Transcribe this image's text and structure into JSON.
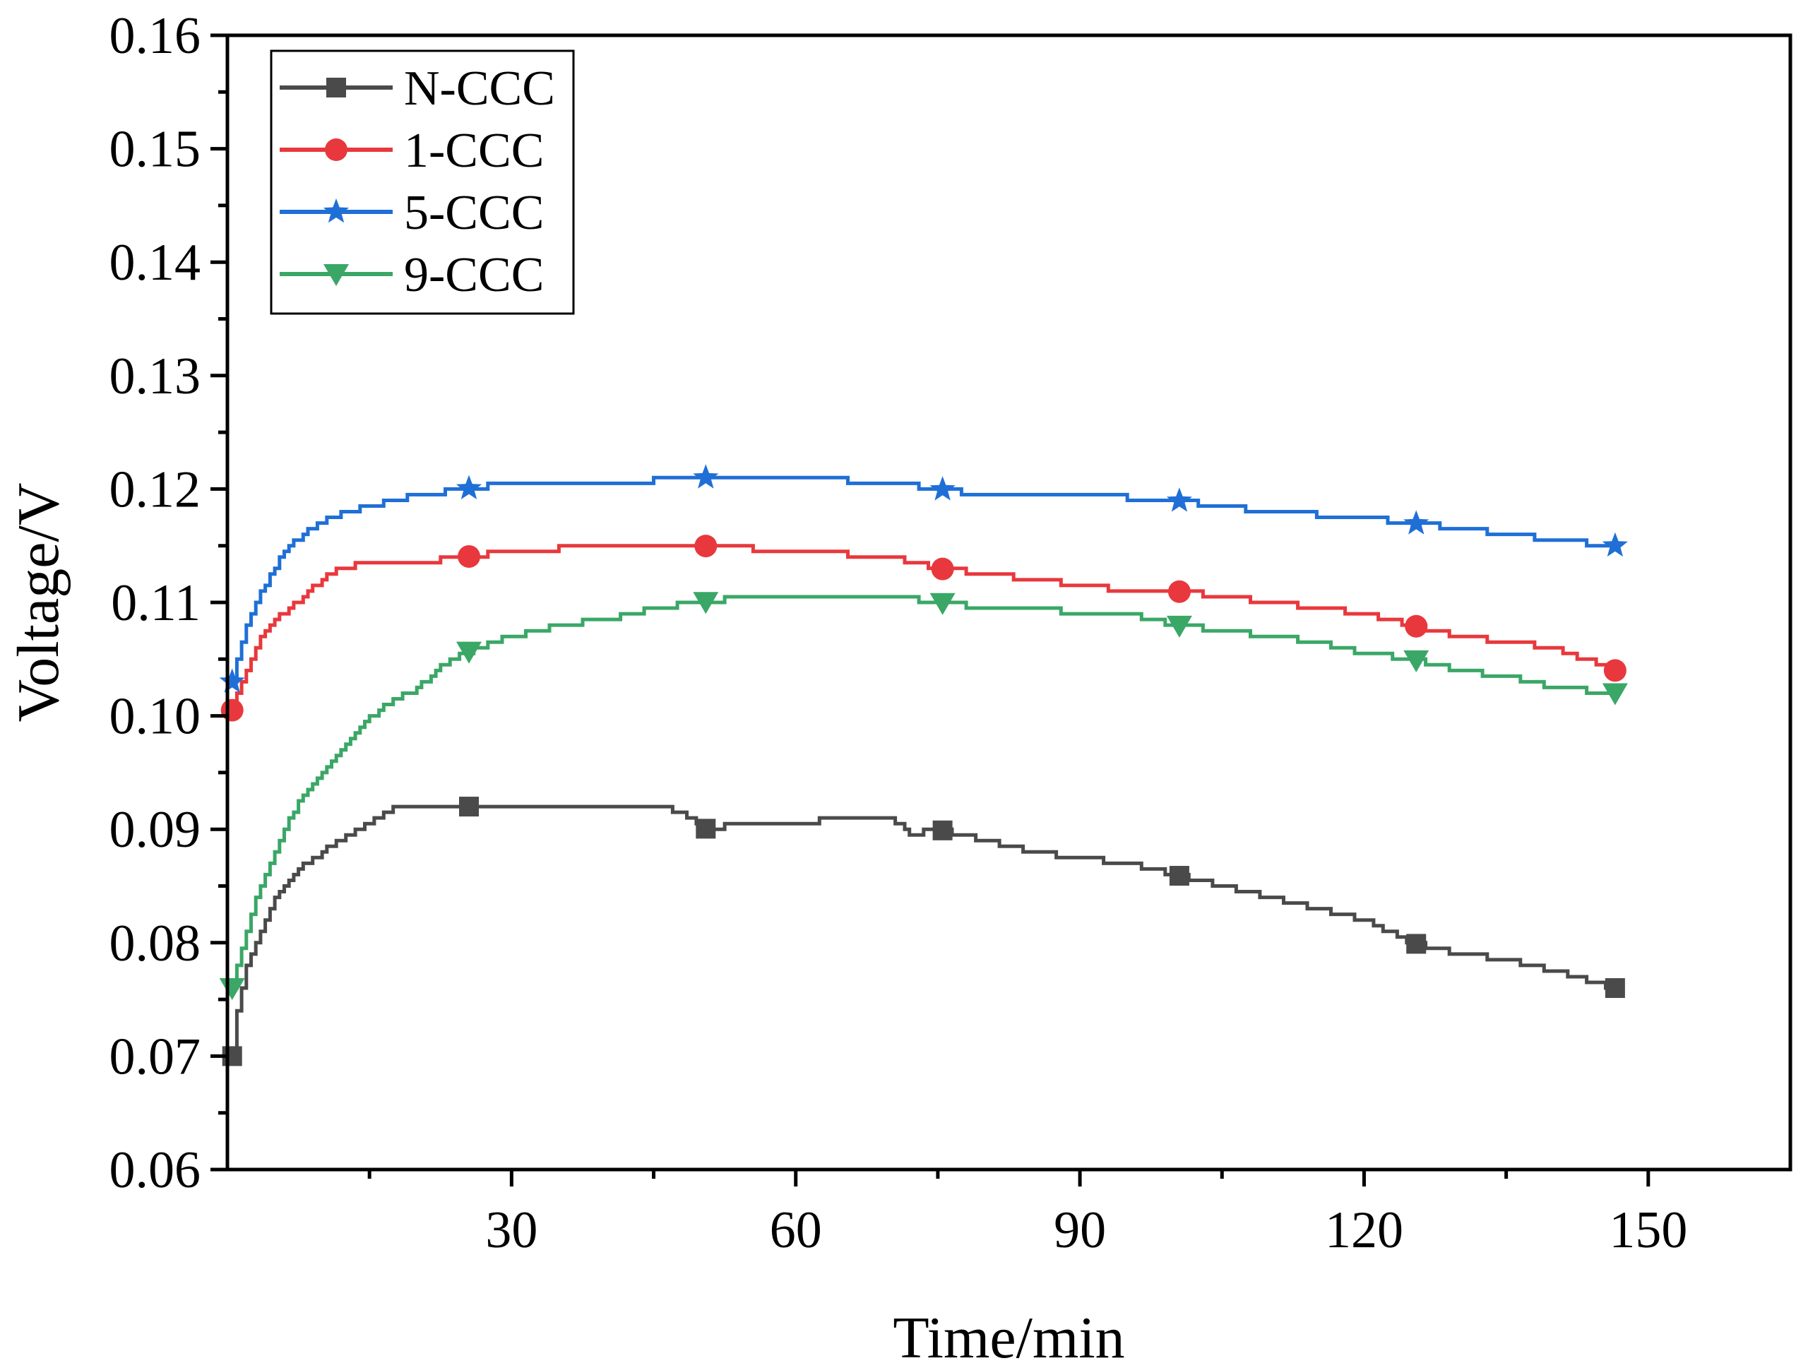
{
  "chart_data": {
    "type": "line",
    "xlabel": "Time/min",
    "ylabel": "Voltage/V",
    "xlim": [
      0,
      165
    ],
    "ylim": [
      0.06,
      0.16
    ],
    "xticks": [
      30,
      60,
      90,
      120,
      150
    ],
    "xtick_labels": [
      "30",
      "60",
      "90",
      "120",
      "150"
    ],
    "yticks": [
      0.06,
      0.07,
      0.08,
      0.09,
      0.1,
      0.11,
      0.12,
      0.13,
      0.14,
      0.15,
      0.16
    ],
    "ytick_labels": [
      "0.06",
      "0.07",
      "0.08",
      "0.09",
      "0.10",
      "0.11",
      "0.12",
      "0.13",
      "0.14",
      "0.15",
      "0.16"
    ],
    "grid": false,
    "legend_position": "top-left",
    "series": [
      {
        "name": "N-CCC",
        "color": "#4a4a4a",
        "marker": "square",
        "marker_x": [
          0.5,
          25.5,
          50.5,
          75.5,
          100.5,
          125.5,
          146.5
        ],
        "x": [
          0.5,
          1,
          2,
          3,
          4,
          5,
          6,
          8,
          10,
          12,
          14,
          16,
          18,
          20,
          25,
          30,
          35,
          40,
          45,
          48,
          50,
          55,
          60,
          65,
          70,
          72,
          75,
          80,
          85,
          90,
          95,
          100,
          105,
          110,
          115,
          120,
          125,
          130,
          135,
          140,
          146.5
        ],
        "values": [
          0.07,
          0.074,
          0.078,
          0.08,
          0.082,
          0.084,
          0.085,
          0.087,
          0.088,
          0.089,
          0.09,
          0.091,
          0.092,
          0.092,
          0.092,
          0.092,
          0.092,
          0.092,
          0.092,
          0.0915,
          0.09,
          0.0905,
          0.0905,
          0.091,
          0.091,
          0.0895,
          0.09,
          0.089,
          0.088,
          0.0875,
          0.087,
          0.086,
          0.085,
          0.084,
          0.083,
          0.082,
          0.08,
          0.079,
          0.0785,
          0.0775,
          0.076
        ]
      },
      {
        "name": "1-CCC",
        "color": "#e8383d",
        "marker": "circle",
        "marker_x": [
          0.5,
          25.5,
          50.5,
          75.5,
          100.5,
          125.5,
          146.5
        ],
        "x": [
          0.5,
          1,
          2,
          3,
          4,
          5,
          6,
          8,
          10,
          12,
          15,
          20,
          25,
          30,
          40,
          50,
          60,
          70,
          75,
          80,
          85,
          90,
          95,
          100,
          105,
          110,
          115,
          120,
          125,
          130,
          135,
          140,
          146.5
        ],
        "values": [
          0.1005,
          0.102,
          0.104,
          0.106,
          0.1075,
          0.1085,
          0.109,
          0.1105,
          0.112,
          0.113,
          0.1135,
          0.1135,
          0.114,
          0.1145,
          0.115,
          0.115,
          0.1145,
          0.114,
          0.113,
          0.1125,
          0.112,
          0.1115,
          0.111,
          0.111,
          0.1105,
          0.11,
          0.1095,
          0.109,
          0.108,
          0.107,
          0.1065,
          0.106,
          0.104
        ]
      },
      {
        "name": "5-CCC",
        "color": "#1f6fd6",
        "marker": "star",
        "marker_x": [
          0.5,
          25.5,
          50.5,
          75.5,
          100.5,
          125.5,
          146.5
        ],
        "x": [
          0.5,
          1,
          2,
          3,
          4,
          5,
          6,
          8,
          10,
          12,
          15,
          20,
          25,
          30,
          40,
          50,
          60,
          70,
          75,
          80,
          90,
          100,
          110,
          120,
          125,
          130,
          140,
          146.5
        ],
        "values": [
          0.103,
          0.105,
          0.108,
          0.11,
          0.1115,
          0.113,
          0.1145,
          0.116,
          0.117,
          0.118,
          0.1185,
          0.1195,
          0.12,
          0.1205,
          0.1205,
          0.121,
          0.121,
          0.1205,
          0.12,
          0.1195,
          0.1195,
          0.119,
          0.118,
          0.1175,
          0.117,
          0.1165,
          0.1155,
          0.115
        ]
      },
      {
        "name": "9-CCC",
        "color": "#3aa766",
        "marker": "triangle-down",
        "marker_x": [
          0.5,
          25.5,
          50.5,
          75.5,
          100.5,
          125.5,
          146.5
        ],
        "x": [
          0.5,
          1,
          2,
          3,
          4,
          5,
          6,
          8,
          10,
          12,
          14,
          16,
          18,
          20,
          22,
          25,
          28,
          30,
          35,
          40,
          45,
          50,
          55,
          60,
          65,
          70,
          75,
          80,
          85,
          90,
          95,
          100,
          105,
          110,
          115,
          120,
          125,
          130,
          135,
          140,
          146.5
        ],
        "values": [
          0.076,
          0.078,
          0.081,
          0.084,
          0.086,
          0.088,
          0.09,
          0.093,
          0.095,
          0.097,
          0.099,
          0.1005,
          0.1015,
          0.1025,
          0.104,
          0.1055,
          0.1065,
          0.107,
          0.108,
          0.1085,
          0.1095,
          0.11,
          0.1105,
          0.1105,
          0.1105,
          0.1105,
          0.11,
          0.1095,
          0.1095,
          0.109,
          0.109,
          0.108,
          0.1075,
          0.107,
          0.1065,
          0.1055,
          0.105,
          0.104,
          0.1035,
          0.1025,
          0.102
        ]
      }
    ]
  }
}
